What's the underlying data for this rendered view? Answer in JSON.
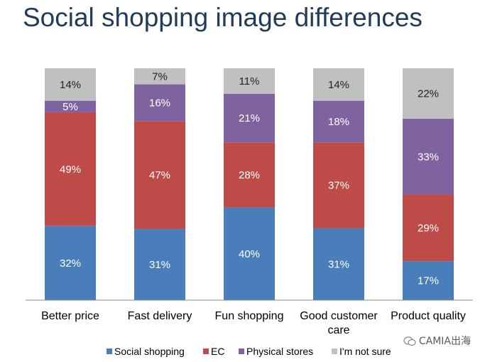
{
  "title": "Social shopping image differences",
  "watermark": "CAMIA出海",
  "colors": {
    "social": "#4a7ebb",
    "ec": "#be4b48",
    "physical": "#7f63a1",
    "unsure": "#c0c0c0"
  },
  "chart_data": {
    "type": "bar",
    "stacked": true,
    "percent_stacked": true,
    "title": "Social shopping image differences",
    "xlabel": "",
    "ylabel": "",
    "ylim": [
      0,
      100
    ],
    "grid": false,
    "legend_position": "bottom",
    "categories": [
      [
        "Better price"
      ],
      [
        "Fast delivery"
      ],
      [
        "Fun shopping"
      ],
      [
        "Good customer",
        "care"
      ],
      [
        "Product quality"
      ]
    ],
    "series": [
      {
        "name": "Social shopping",
        "color": "#4a7ebb",
        "values": [
          32,
          31,
          40,
          31,
          17
        ]
      },
      {
        "name": "EC",
        "color": "#be4b48",
        "values": [
          49,
          47,
          28,
          37,
          29
        ]
      },
      {
        "name": "Physical stores",
        "color": "#7f63a1",
        "values": [
          5,
          16,
          21,
          18,
          33
        ]
      },
      {
        "name": "I'm not sure",
        "color": "#c0c0c0",
        "values": [
          14,
          7,
          11,
          14,
          22
        ]
      }
    ]
  }
}
